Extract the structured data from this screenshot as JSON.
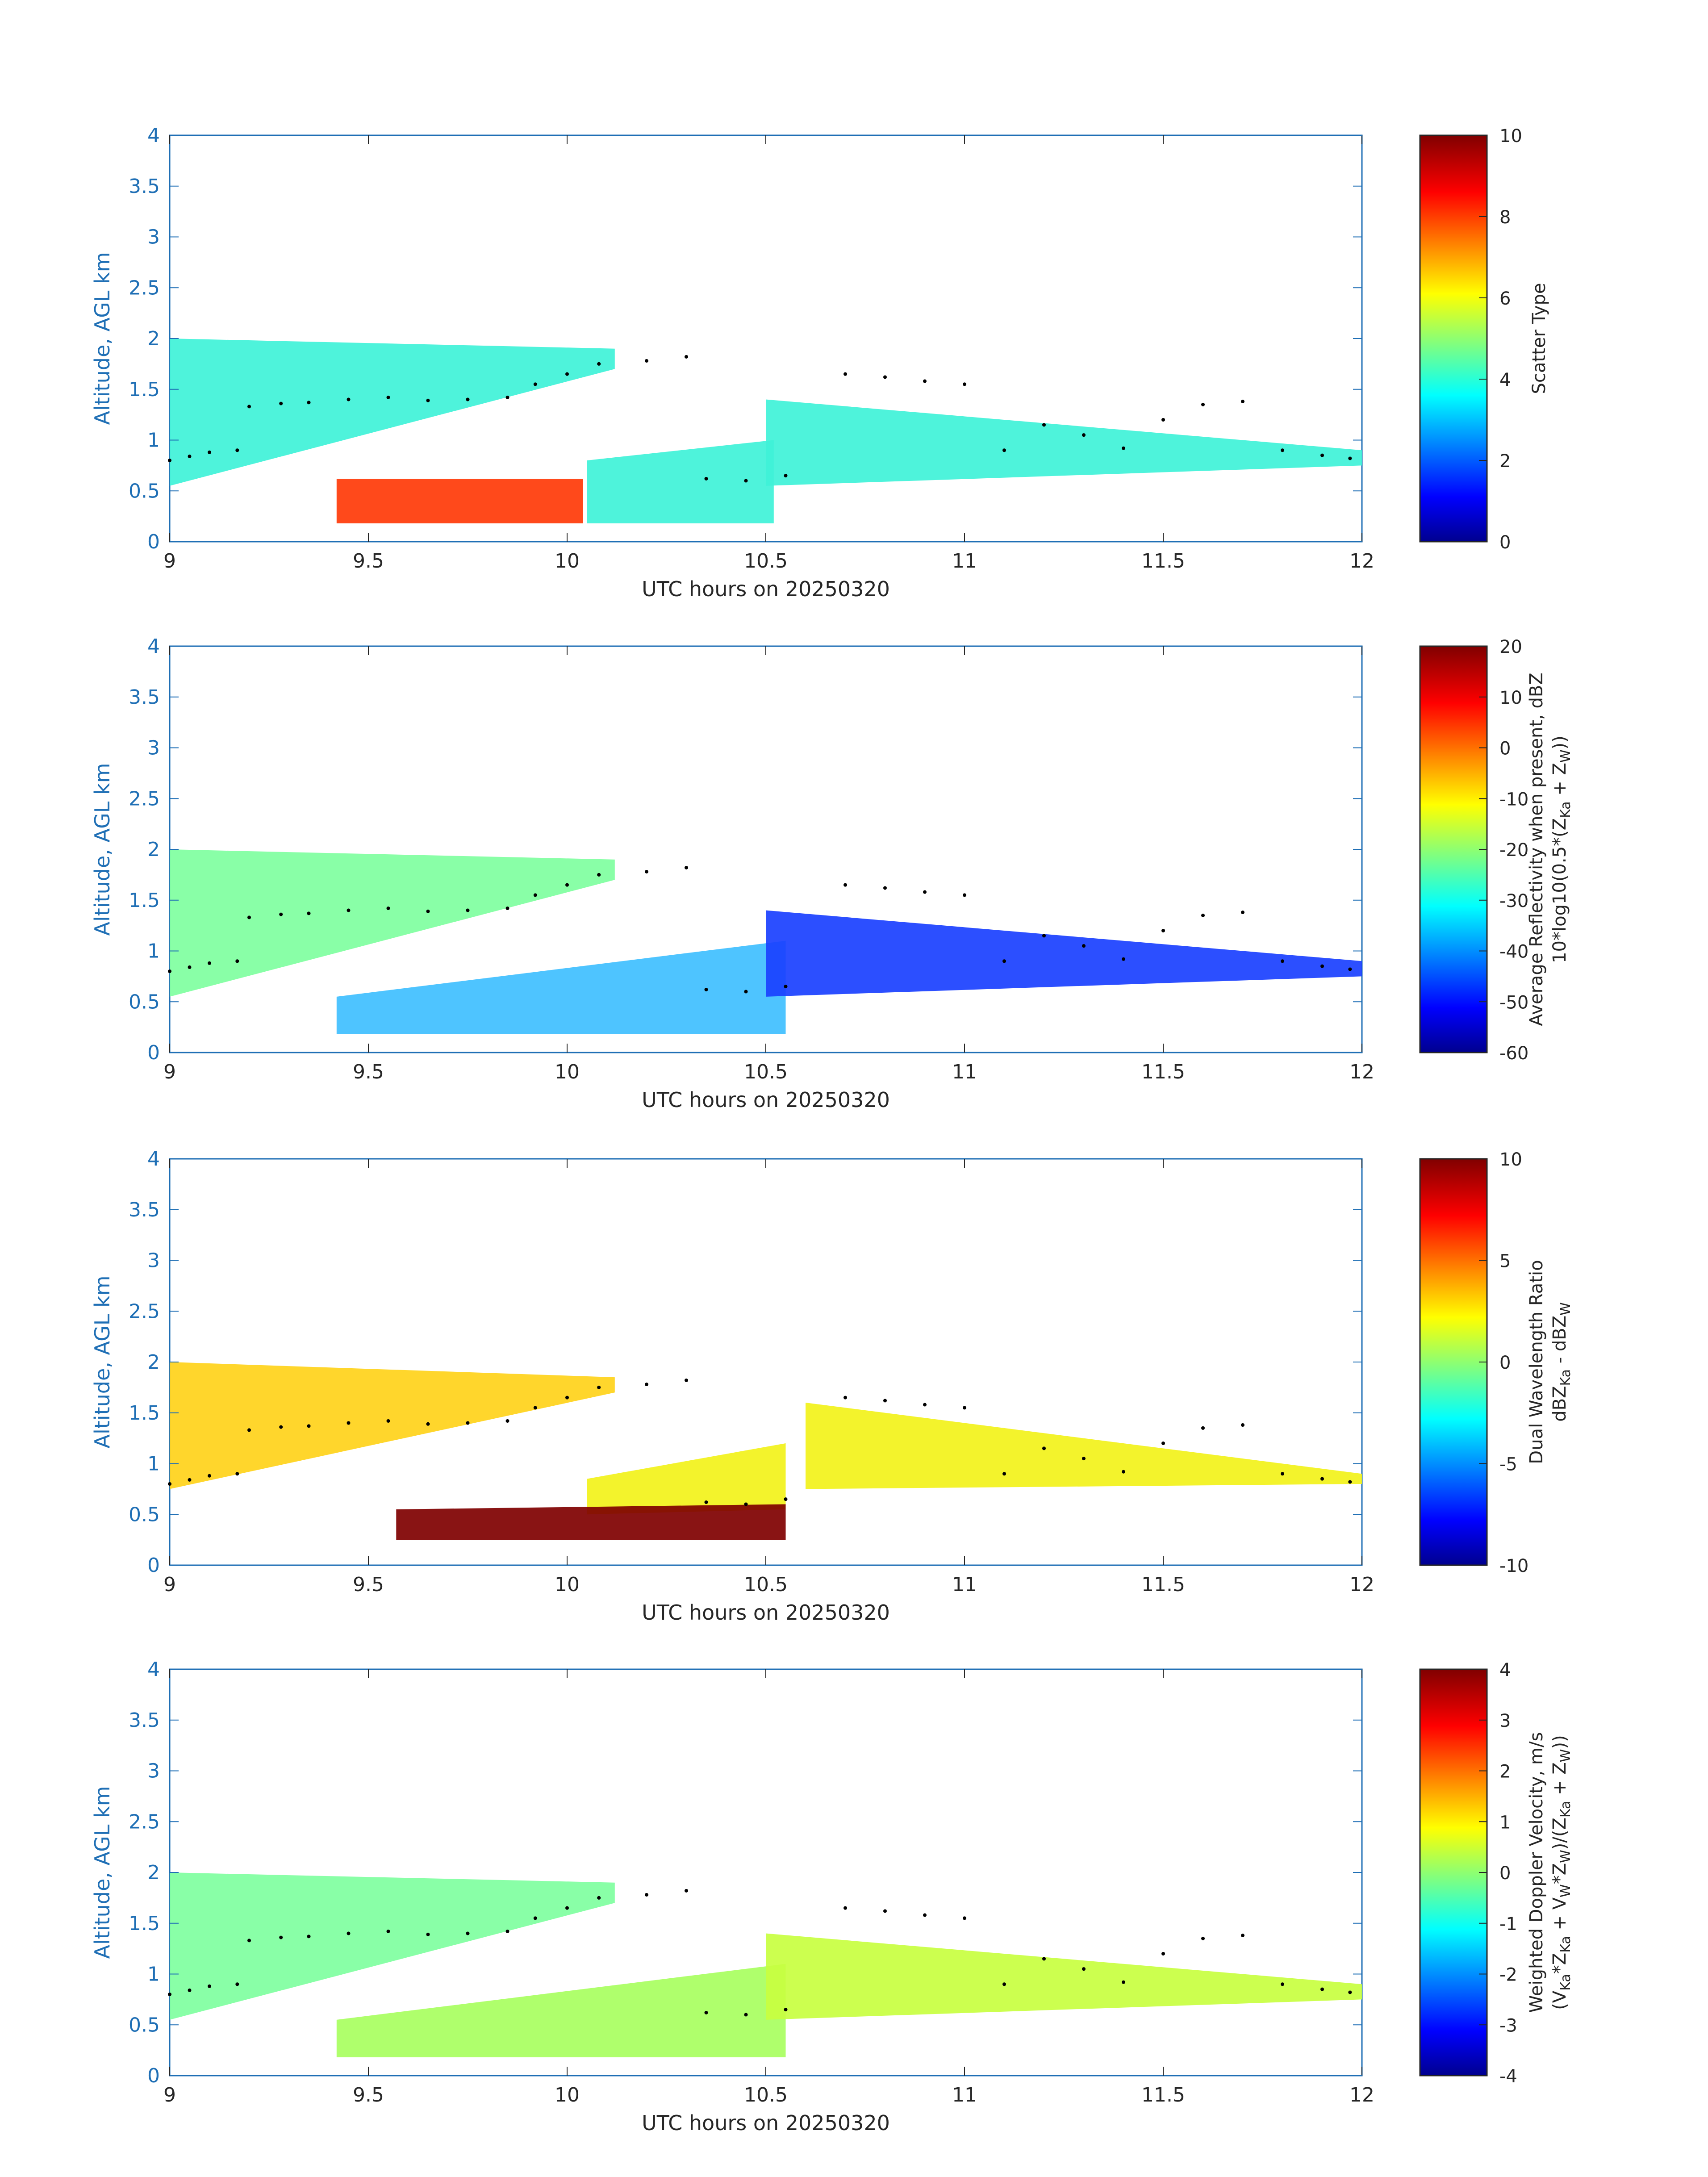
{
  "chart_data": [
    {
      "type": "heatmap",
      "title": "",
      "xlabel": "UTC hours on 20250320",
      "ylabel": "Altitude, AGL km",
      "xlim": [
        9,
        12
      ],
      "ylim": [
        0,
        4
      ],
      "xticks": [
        "9",
        "9.5",
        "10",
        "10.5",
        "11",
        "11.5",
        "12"
      ],
      "yticks": [
        "0",
        "0.5",
        "1",
        "1.5",
        "2",
        "2.5",
        "3",
        "3.5",
        "4"
      ],
      "colorbar": {
        "label_lines": [
          "Scatter Type"
        ],
        "range": [
          0,
          10
        ],
        "ticks": [
          "0",
          "2",
          "4",
          "6",
          "8",
          "10"
        ],
        "colormap": "jet"
      },
      "regions": [
        {
          "name": "upper layer",
          "color": "#3ff2d8",
          "x_start": 9.0,
          "x_end": 10.12,
          "y_bottom_start": 0.55,
          "y_bottom_end": 1.7,
          "y_top_start": 2.0,
          "y_top_end": 1.9
        },
        {
          "name": "lower layer",
          "color": "#3ff2d8",
          "x_start": 10.05,
          "x_end": 10.52,
          "y_bottom_start": 0.18,
          "y_bottom_end": 0.18,
          "y_top_start": 0.8,
          "y_top_end": 1.0
        },
        {
          "name": "scattered cells",
          "color": "#3ff2d8",
          "x_start": 10.5,
          "x_end": 12.0,
          "y_bottom_start": 0.55,
          "y_bottom_end": 0.75,
          "y_top_start": 1.4,
          "y_top_end": 0.9
        },
        {
          "name": "near-surface band",
          "color": "#ff3a08",
          "x_start": 9.42,
          "x_end": 10.04,
          "y_bottom_start": 0.18,
          "y_bottom_end": 0.18,
          "y_top_start": 0.62,
          "y_top_end": 0.62
        }
      ],
      "cloud_top_points": [
        [
          9.0,
          0.8
        ],
        [
          9.05,
          0.84
        ],
        [
          9.1,
          0.88
        ],
        [
          9.17,
          0.9
        ],
        [
          9.2,
          1.33
        ],
        [
          9.28,
          1.36
        ],
        [
          9.35,
          1.37
        ],
        [
          9.45,
          1.4
        ],
        [
          9.55,
          1.42
        ],
        [
          9.65,
          1.39
        ],
        [
          9.75,
          1.4
        ],
        [
          9.85,
          1.42
        ],
        [
          9.92,
          1.55
        ],
        [
          10.0,
          1.65
        ],
        [
          10.08,
          1.75
        ],
        [
          10.2,
          1.78
        ],
        [
          10.3,
          1.82
        ],
        [
          10.35,
          0.62
        ],
        [
          10.45,
          0.6
        ],
        [
          10.55,
          0.65
        ],
        [
          10.7,
          1.65
        ],
        [
          10.8,
          1.62
        ],
        [
          10.9,
          1.58
        ],
        [
          11.0,
          1.55
        ],
        [
          11.1,
          0.9
        ],
        [
          11.2,
          1.15
        ],
        [
          11.3,
          1.05
        ],
        [
          11.4,
          0.92
        ],
        [
          11.5,
          1.2
        ],
        [
          11.6,
          1.35
        ],
        [
          11.7,
          1.38
        ],
        [
          11.8,
          0.9
        ],
        [
          11.9,
          0.85
        ],
        [
          11.97,
          0.82
        ]
      ]
    },
    {
      "type": "heatmap",
      "title": "",
      "xlabel": "UTC hours on 20250320",
      "ylabel": "Altitude, AGL km",
      "xlim": [
        9,
        12
      ],
      "ylim": [
        0,
        4
      ],
      "xticks": [
        "9",
        "9.5",
        "10",
        "10.5",
        "11",
        "11.5",
        "12"
      ],
      "yticks": [
        "0",
        "0.5",
        "1",
        "1.5",
        "2",
        "2.5",
        "3",
        "3.5",
        "4"
      ],
      "colorbar": {
        "label_lines": [
          "Average Reflectivity when present, dBZ",
          "10*log10(0.5*(Z",
          "Ka",
          " + Z",
          "W",
          "))"
        ],
        "range": [
          -60,
          20
        ],
        "ticks": [
          "-60",
          "-50",
          "-40",
          "-30",
          "-20",
          "-10",
          "0",
          "10",
          "20"
        ],
        "colormap": "jet"
      },
      "regions": [
        {
          "name": "upper layer",
          "color": "#7fffa0",
          "x_start": 9.0,
          "x_end": 10.12,
          "y_bottom_start": 0.55,
          "y_bottom_end": 1.7,
          "y_top_start": 2.0,
          "y_top_end": 1.9
        },
        {
          "name": "lower layer",
          "color": "#3fbfff",
          "x_start": 9.42,
          "x_end": 10.55,
          "y_bottom_start": 0.18,
          "y_bottom_end": 0.18,
          "y_top_start": 0.55,
          "y_top_end": 1.1
        },
        {
          "name": "scattered cells",
          "color": "#1a40ff",
          "x_start": 10.5,
          "x_end": 12.0,
          "y_bottom_start": 0.55,
          "y_bottom_end": 0.75,
          "y_top_start": 1.4,
          "y_top_end": 0.9
        }
      ],
      "cloud_top_points": [
        [
          9.0,
          0.8
        ],
        [
          9.05,
          0.84
        ],
        [
          9.1,
          0.88
        ],
        [
          9.17,
          0.9
        ],
        [
          9.2,
          1.33
        ],
        [
          9.28,
          1.36
        ],
        [
          9.35,
          1.37
        ],
        [
          9.45,
          1.4
        ],
        [
          9.55,
          1.42
        ],
        [
          9.65,
          1.39
        ],
        [
          9.75,
          1.4
        ],
        [
          9.85,
          1.42
        ],
        [
          9.92,
          1.55
        ],
        [
          10.0,
          1.65
        ],
        [
          10.08,
          1.75
        ],
        [
          10.2,
          1.78
        ],
        [
          10.3,
          1.82
        ],
        [
          10.35,
          0.62
        ],
        [
          10.45,
          0.6
        ],
        [
          10.55,
          0.65
        ],
        [
          10.7,
          1.65
        ],
        [
          10.8,
          1.62
        ],
        [
          10.9,
          1.58
        ],
        [
          11.0,
          1.55
        ],
        [
          11.1,
          0.9
        ],
        [
          11.2,
          1.15
        ],
        [
          11.3,
          1.05
        ],
        [
          11.4,
          0.92
        ],
        [
          11.5,
          1.2
        ],
        [
          11.6,
          1.35
        ],
        [
          11.7,
          1.38
        ],
        [
          11.8,
          0.9
        ],
        [
          11.9,
          0.85
        ],
        [
          11.97,
          0.82
        ]
      ]
    },
    {
      "type": "heatmap",
      "title": "",
      "xlabel": "UTC hours on 20250320",
      "ylabel": "Altitude, AGL km",
      "xlim": [
        9,
        12
      ],
      "ylim": [
        0,
        4
      ],
      "xticks": [
        "9",
        "9.5",
        "10",
        "10.5",
        "11",
        "11.5",
        "12"
      ],
      "yticks": [
        "0",
        "0.5",
        "1",
        "1.5",
        "2",
        "2.5",
        "3",
        "3.5",
        "4"
      ],
      "colorbar": {
        "label_lines": [
          "Dual Wavelength Ratio",
          "dBZ",
          "Ka",
          " - dBZ",
          "W"
        ],
        "range": [
          -10,
          10
        ],
        "ticks": [
          "-10",
          "-5",
          "0",
          "5",
          "10"
        ],
        "colormap": "jet"
      },
      "regions": [
        {
          "name": "upper layer",
          "color": "#ffd21a",
          "x_start": 9.0,
          "x_end": 10.12,
          "y_bottom_start": 0.75,
          "y_bottom_end": 1.7,
          "y_top_start": 2.0,
          "y_top_end": 1.85
        },
        {
          "name": "lower layer",
          "color": "#f2f21a",
          "x_start": 10.05,
          "x_end": 10.55,
          "y_bottom_start": 0.5,
          "y_bottom_end": 0.55,
          "y_top_start": 0.85,
          "y_top_end": 1.2
        },
        {
          "name": "near-surface band",
          "color": "#7f0000",
          "x_start": 9.57,
          "x_end": 10.55,
          "y_bottom_start": 0.25,
          "y_bottom_end": 0.25,
          "y_top_start": 0.55,
          "y_top_end": 0.6
        },
        {
          "name": "scattered cells",
          "color": "#f2f21a",
          "x_start": 10.6,
          "x_end": 12.0,
          "y_bottom_start": 0.75,
          "y_bottom_end": 0.8,
          "y_top_start": 1.6,
          "y_top_end": 0.9
        }
      ],
      "cloud_top_points": [
        [
          9.0,
          0.8
        ],
        [
          9.05,
          0.84
        ],
        [
          9.1,
          0.88
        ],
        [
          9.17,
          0.9
        ],
        [
          9.2,
          1.33
        ],
        [
          9.28,
          1.36
        ],
        [
          9.35,
          1.37
        ],
        [
          9.45,
          1.4
        ],
        [
          9.55,
          1.42
        ],
        [
          9.65,
          1.39
        ],
        [
          9.75,
          1.4
        ],
        [
          9.85,
          1.42
        ],
        [
          9.92,
          1.55
        ],
        [
          10.0,
          1.65
        ],
        [
          10.08,
          1.75
        ],
        [
          10.2,
          1.78
        ],
        [
          10.3,
          1.82
        ],
        [
          10.35,
          0.62
        ],
        [
          10.45,
          0.6
        ],
        [
          10.55,
          0.65
        ],
        [
          10.7,
          1.65
        ],
        [
          10.8,
          1.62
        ],
        [
          10.9,
          1.58
        ],
        [
          11.0,
          1.55
        ],
        [
          11.1,
          0.9
        ],
        [
          11.2,
          1.15
        ],
        [
          11.3,
          1.05
        ],
        [
          11.4,
          0.92
        ],
        [
          11.5,
          1.2
        ],
        [
          11.6,
          1.35
        ],
        [
          11.7,
          1.38
        ],
        [
          11.8,
          0.9
        ],
        [
          11.9,
          0.85
        ],
        [
          11.97,
          0.82
        ]
      ]
    },
    {
      "type": "heatmap",
      "title": "",
      "xlabel": "UTC hours on 20250320",
      "ylabel": "Altitude, AGL km",
      "xlim": [
        9,
        12
      ],
      "ylim": [
        0,
        4
      ],
      "xticks": [
        "9",
        "9.5",
        "10",
        "10.5",
        "11",
        "11.5",
        "12"
      ],
      "yticks": [
        "0",
        "0.5",
        "1",
        "1.5",
        "2",
        "2.5",
        "3",
        "3.5",
        "4"
      ],
      "colorbar": {
        "label_lines": [
          "Weighted Doppler Velocity, m/s",
          "(V",
          "Ka",
          "*Z",
          "Ka",
          " + V",
          "W",
          "*Z",
          "W",
          ")/(Z",
          "Ka",
          " + Z",
          "W",
          "))"
        ],
        "range": [
          -4,
          4
        ],
        "ticks": [
          "-4",
          "-3",
          "-2",
          "-1",
          "0",
          "1",
          "2",
          "3",
          "4"
        ],
        "colormap": "jet"
      },
      "regions": [
        {
          "name": "upper layer",
          "color": "#7fffa0",
          "x_start": 9.0,
          "x_end": 10.12,
          "y_bottom_start": 0.55,
          "y_bottom_end": 1.7,
          "y_top_start": 2.0,
          "y_top_end": 1.9
        },
        {
          "name": "lower layer",
          "color": "#a8ff60",
          "x_start": 9.42,
          "x_end": 10.55,
          "y_bottom_start": 0.18,
          "y_bottom_end": 0.18,
          "y_top_start": 0.55,
          "y_top_end": 1.1
        },
        {
          "name": "scattered cells",
          "color": "#c8ff40",
          "x_start": 10.5,
          "x_end": 12.0,
          "y_bottom_start": 0.55,
          "y_bottom_end": 0.75,
          "y_top_start": 1.4,
          "y_top_end": 0.9
        }
      ],
      "cloud_top_points": [
        [
          9.0,
          0.8
        ],
        [
          9.05,
          0.84
        ],
        [
          9.1,
          0.88
        ],
        [
          9.17,
          0.9
        ],
        [
          9.2,
          1.33
        ],
        [
          9.28,
          1.36
        ],
        [
          9.35,
          1.37
        ],
        [
          9.45,
          1.4
        ],
        [
          9.55,
          1.42
        ],
        [
          9.65,
          1.39
        ],
        [
          9.75,
          1.4
        ],
        [
          9.85,
          1.42
        ],
        [
          9.92,
          1.55
        ],
        [
          10.0,
          1.65
        ],
        [
          10.08,
          1.75
        ],
        [
          10.2,
          1.78
        ],
        [
          10.3,
          1.82
        ],
        [
          10.35,
          0.62
        ],
        [
          10.45,
          0.6
        ],
        [
          10.55,
          0.65
        ],
        [
          10.7,
          1.65
        ],
        [
          10.8,
          1.62
        ],
        [
          10.9,
          1.58
        ],
        [
          11.0,
          1.55
        ],
        [
          11.1,
          0.9
        ],
        [
          11.2,
          1.15
        ],
        [
          11.3,
          1.05
        ],
        [
          11.4,
          0.92
        ],
        [
          11.5,
          1.2
        ],
        [
          11.6,
          1.35
        ],
        [
          11.7,
          1.38
        ],
        [
          11.8,
          0.9
        ],
        [
          11.9,
          0.85
        ],
        [
          11.97,
          0.82
        ]
      ]
    }
  ]
}
